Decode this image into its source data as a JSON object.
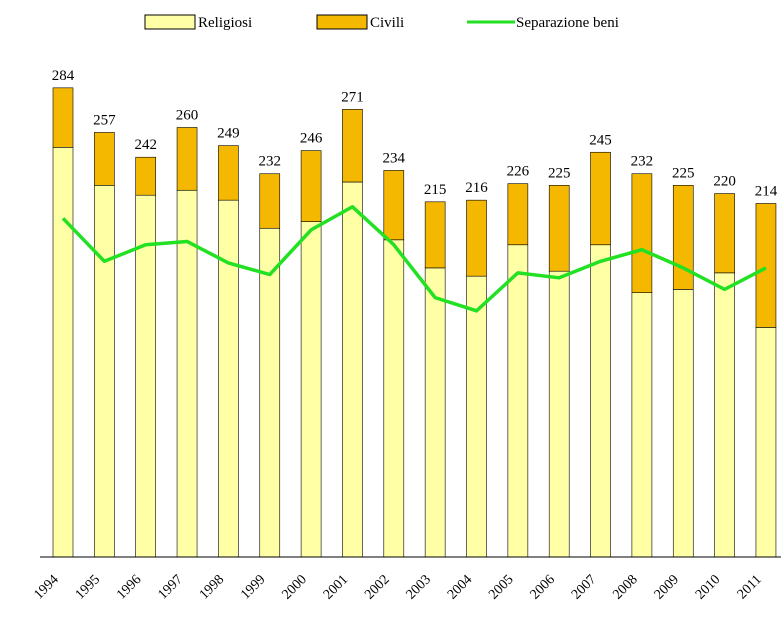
{
  "chart_data": {
    "type": "bar",
    "stacked": true,
    "categories": [
      "1994",
      "1995",
      "1996",
      "1997",
      "1998",
      "1999",
      "2000",
      "2001",
      "2002",
      "2003",
      "2004",
      "2005",
      "2006",
      "2007",
      "2008",
      "2009",
      "2010",
      "2011"
    ],
    "series": [
      {
        "name": "Religiosi",
        "color": "#ffffa6",
        "values": [
          248,
          225,
          219,
          222,
          216,
          199,
          203,
          227,
          192,
          175,
          170,
          189,
          173,
          189,
          160,
          162,
          172,
          139
        ]
      },
      {
        "name": "Civili",
        "color": "#f5b800",
        "values": [
          36,
          32,
          23,
          38,
          33,
          33,
          43,
          44,
          42,
          40,
          46,
          37,
          52,
          56,
          72,
          63,
          48,
          75
        ]
      },
      {
        "name": "Separazione beni",
        "type": "line",
        "color": "#22e022",
        "values": [
          205,
          179,
          189,
          191,
          178,
          171,
          198,
          212,
          189,
          157,
          149,
          172,
          169,
          179,
          186,
          175,
          162,
          175
        ]
      }
    ],
    "totals": [
      284,
      257,
      242,
      260,
      249,
      232,
      246,
      271,
      234,
      215,
      216,
      226,
      225,
      245,
      232,
      225,
      220,
      214
    ],
    "ylim": [
      0,
      300
    ]
  }
}
